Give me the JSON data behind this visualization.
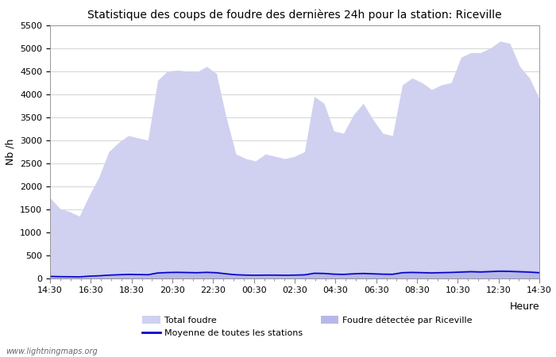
{
  "title": "Statistique des coups de foudre des dernières 24h pour la station: Riceville",
  "ylabel": "Nb /h",
  "xlabel": "Heure",
  "watermark": "www.lightningmaps.org",
  "ylim": [
    0,
    5500
  ],
  "yticks": [
    0,
    500,
    1000,
    1500,
    2000,
    2500,
    3000,
    3500,
    4000,
    4500,
    5000,
    5500
  ],
  "x_labels": [
    "14:30",
    "16:30",
    "18:30",
    "20:30",
    "22:30",
    "00:30",
    "02:30",
    "04:30",
    "06:30",
    "08:30",
    "10:30",
    "12:30",
    "14:30"
  ],
  "color_total": "#d0d0f0",
  "color_riceville": "#b8b8e8",
  "color_moyenne": "#0000cc",
  "bg_color": "#ffffff",
  "grid_color": "#cccccc",
  "total_foudre": [
    1750,
    1520,
    1450,
    1350,
    1800,
    2200,
    2750,
    2950,
    3100,
    3050,
    3000,
    4300,
    4500,
    4520,
    4500,
    4480,
    4600,
    4450,
    3500,
    2700,
    2600,
    2550,
    2700,
    2650,
    2600,
    2650,
    2750,
    3950,
    3800,
    3200,
    3150,
    3550,
    3800,
    3450,
    3150,
    3100,
    4200,
    4350,
    4250,
    4100,
    4200,
    4250,
    4800,
    4900,
    4900,
    5000,
    5150,
    5100,
    4600,
    4350,
    3900
  ],
  "riceville": [
    60,
    55,
    50,
    45,
    65,
    75,
    95,
    105,
    115,
    110,
    105,
    155,
    165,
    170,
    165,
    160,
    170,
    160,
    130,
    105,
    95,
    90,
    95,
    95,
    90,
    95,
    100,
    145,
    140,
    120,
    115,
    130,
    140,
    130,
    120,
    118,
    160,
    168,
    162,
    156,
    162,
    165,
    178,
    188,
    182,
    192,
    202,
    198,
    188,
    178,
    160
  ],
  "moyenne": [
    45,
    40,
    38,
    35,
    50,
    58,
    72,
    80,
    88,
    85,
    80,
    118,
    128,
    132,
    128,
    124,
    132,
    124,
    100,
    80,
    73,
    70,
    73,
    73,
    70,
    73,
    78,
    112,
    108,
    93,
    88,
    100,
    108,
    100,
    93,
    90,
    124,
    130,
    125,
    120,
    125,
    130,
    138,
    146,
    140,
    148,
    156,
    152,
    145,
    137,
    124
  ]
}
